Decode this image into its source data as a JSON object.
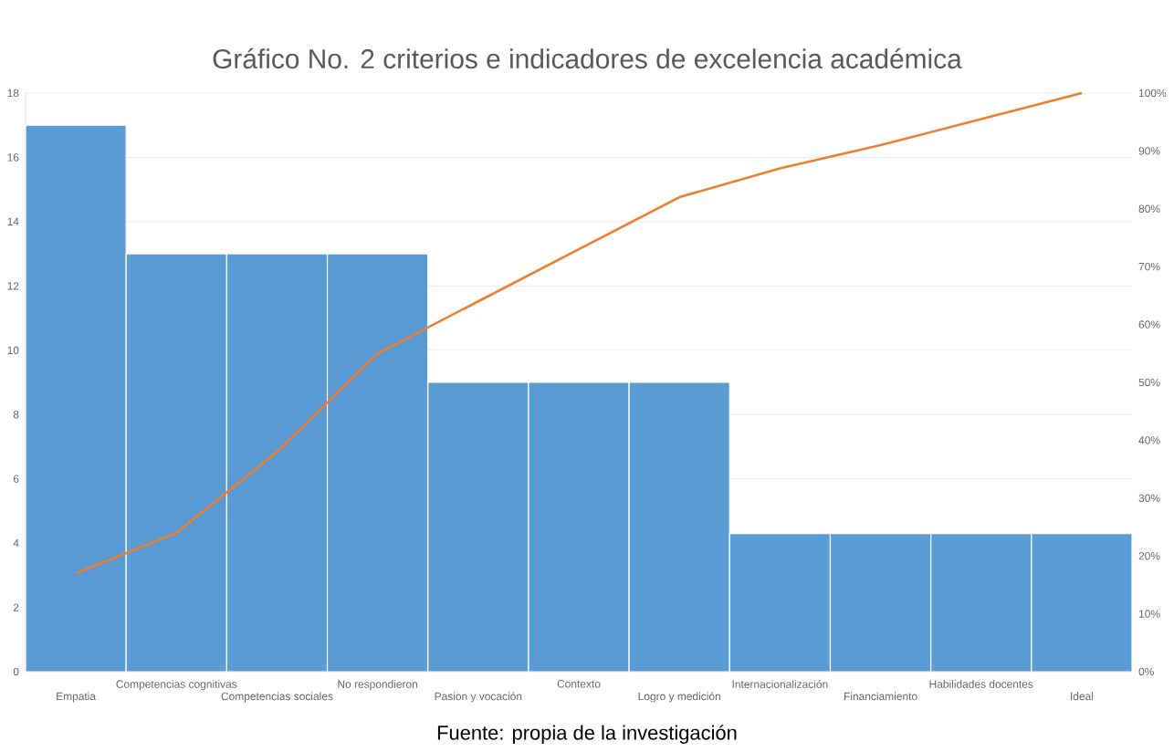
{
  "chart_data": {
    "type": "bar",
    "title": "Gráfico No. 2 criterios e indicadores de excelencia académica",
    "categories": [
      "Empatia",
      "Competencias cognitivas",
      "Competencias sociales",
      "No respondieron",
      "Pasion y vocación",
      "Contexto",
      "Logro y medición",
      "Internacionalización",
      "Financiamiento",
      "Habilidades docentes",
      "Ideal"
    ],
    "series": [
      {
        "color": "#5b9bd5",
        "values": [
          17,
          13,
          13,
          13,
          9,
          9,
          9,
          4.3,
          4.3,
          4.3,
          4.3
        ]
      },
      {
        "type": "line",
        "axis": "y2",
        "color": "#ed7d31",
        "values": [
          17,
          24,
          38,
          55,
          64,
          73,
          82,
          87,
          91,
          95.5,
          100
        ]
      }
    ],
    "ylim": [
      0,
      18
    ],
    "yticks": [
      0,
      2,
      4,
      6,
      8,
      10,
      12,
      14,
      16,
      18
    ],
    "y2lim": [
      0,
      100
    ],
    "y2ticks": [
      {
        "value": 0,
        "label": "0%"
      },
      {
        "value": 10,
        "label": "10%"
      },
      {
        "value": 20,
        "label": "20%"
      },
      {
        "value": 30,
        "label": "30%"
      },
      {
        "value": 40,
        "label": "40%"
      },
      {
        "value": 50,
        "label": "50%"
      },
      {
        "value": 60,
        "label": "60%"
      },
      {
        "value": 70,
        "label": "70%"
      },
      {
        "value": 80,
        "label": "80%"
      },
      {
        "value": 90,
        "label": "90%"
      },
      {
        "value": 100,
        "label": "100%"
      }
    ],
    "grid": "y",
    "annotations": [
      "Fuente: propia de la investigación"
    ]
  }
}
